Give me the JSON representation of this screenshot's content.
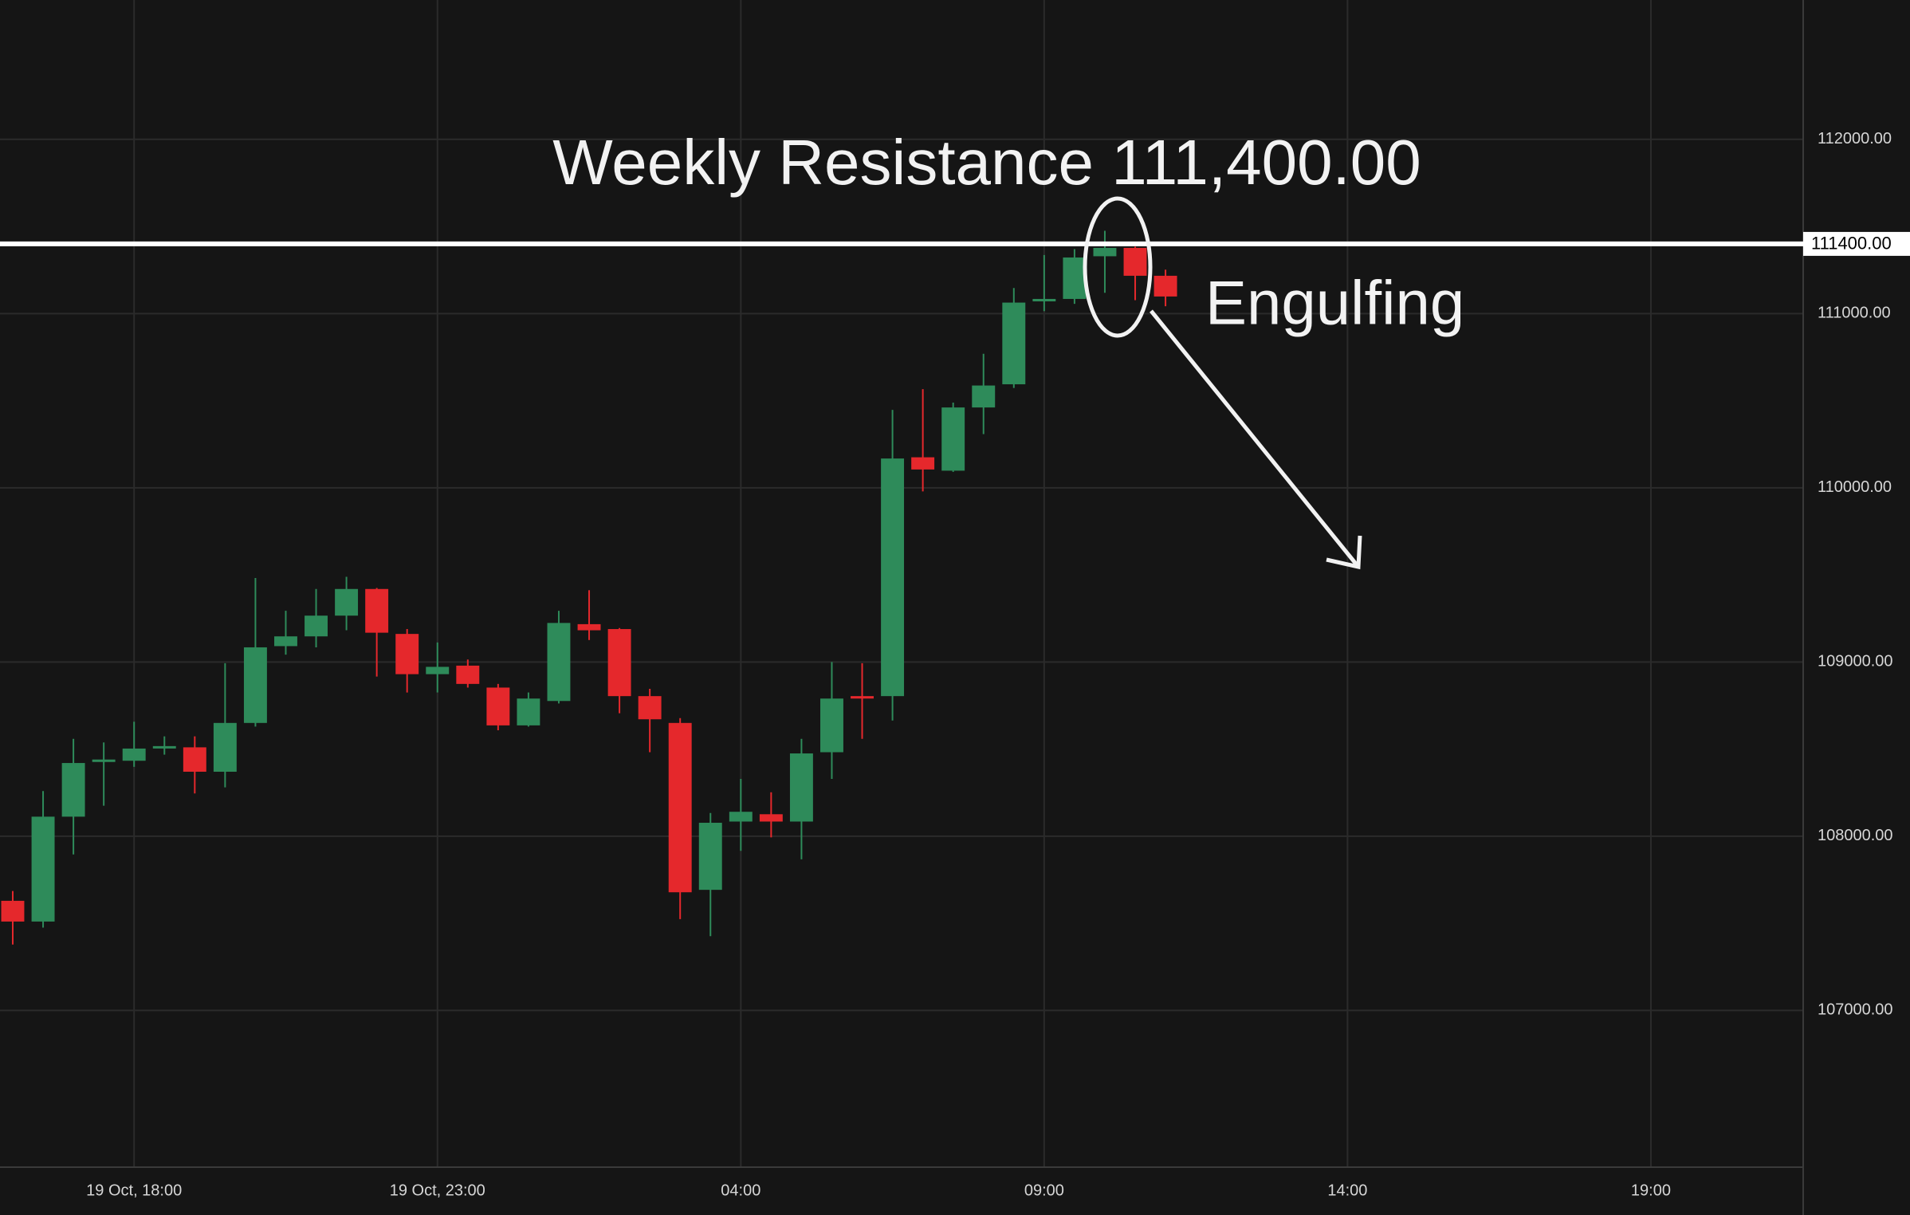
{
  "chart_data": {
    "type": "candlestick",
    "up_color": "#2e8b5a",
    "down_color": "#e5282c",
    "grid": true,
    "xlim": [
      15.79,
      45.51
    ],
    "xticks": [
      {
        "value": 18,
        "label": "19 Oct, 18:00"
      },
      {
        "value": 23,
        "label": "19 Oct, 23:00"
      },
      {
        "value": 28,
        "label": "04:00"
      },
      {
        "value": 33,
        "label": "09:00"
      },
      {
        "value": 38,
        "label": "14:00"
      },
      {
        "value": 43,
        "label": "19:00"
      }
    ],
    "ylim": [
      106100,
      112800
    ],
    "yticks": [
      {
        "value": 107000,
        "label": "107000.00"
      },
      {
        "value": 108000,
        "label": "108000.00"
      },
      {
        "value": 109000,
        "label": "109000.00"
      },
      {
        "value": 110000,
        "label": "110000.00"
      },
      {
        "value": 111000,
        "label": "111000.00"
      },
      {
        "value": 112000,
        "label": "112000.00"
      }
    ],
    "hline": {
      "value": 111400,
      "label": "111400.00"
    },
    "annotations": [
      "Weekly Resistance 111,400.00",
      "Engulfing"
    ],
    "x": [
      16,
      16.5,
      17,
      17.5,
      18,
      18.5,
      19,
      19.5,
      20,
      20.5,
      21,
      21.5,
      22,
      22.5,
      23,
      23.5,
      24,
      24.5,
      25,
      25.5,
      26,
      26.5,
      27,
      27.5,
      28,
      28.5,
      29,
      29.5,
      30,
      30.5,
      31,
      31.5,
      32,
      32.5,
      33,
      33.5,
      34,
      34.5,
      35
    ],
    "open": [
      107629,
      107510,
      108112,
      108426,
      108433,
      108510,
      108510,
      108370,
      108650,
      109091,
      109147,
      109266,
      109419,
      109161,
      108930,
      108979,
      108853,
      108636,
      108776,
      109217,
      109189,
      108804,
      108650,
      107692,
      108084,
      108126,
      108084,
      108482,
      108804,
      108804,
      110175,
      110098,
      110461,
      110594,
      111070,
      111084,
      111329,
      111377,
      111217
    ],
    "high": [
      107685,
      108259,
      108559,
      108538,
      108657,
      108573,
      108573,
      108993,
      109482,
      109294,
      109419,
      109489,
      109425,
      109189,
      109112,
      109014,
      108874,
      108825,
      109294,
      109412,
      109195,
      108846,
      108678,
      108133,
      108329,
      108252,
      108559,
      109000,
      108993,
      110447,
      110566,
      110489,
      110769,
      111147,
      111336,
      111370,
      111475,
      111384,
      111252
    ],
    "low": [
      107378,
      107475,
      107895,
      108175,
      108398,
      108468,
      108245,
      108280,
      108629,
      109042,
      109084,
      109182,
      108916,
      108825,
      108825,
      108853,
      108608,
      108629,
      108762,
      109126,
      108706,
      108482,
      107524,
      107426,
      107916,
      107993,
      107867,
      108329,
      108559,
      108664,
      109979,
      110091,
      110308,
      110573,
      111014,
      111056,
      111119,
      111077,
      111042
    ],
    "close": [
      107510,
      108112,
      108420,
      108440,
      108503,
      108517,
      108370,
      108650,
      109084,
      109147,
      109266,
      109419,
      109168,
      108930,
      108972,
      108874,
      108636,
      108790,
      109224,
      109182,
      108804,
      108671,
      107678,
      108077,
      108140,
      108084,
      108475,
      108790,
      108790,
      110168,
      110105,
      110461,
      110587,
      111063,
      111084,
      111322,
      111377,
      111217,
      111098
    ]
  }
}
